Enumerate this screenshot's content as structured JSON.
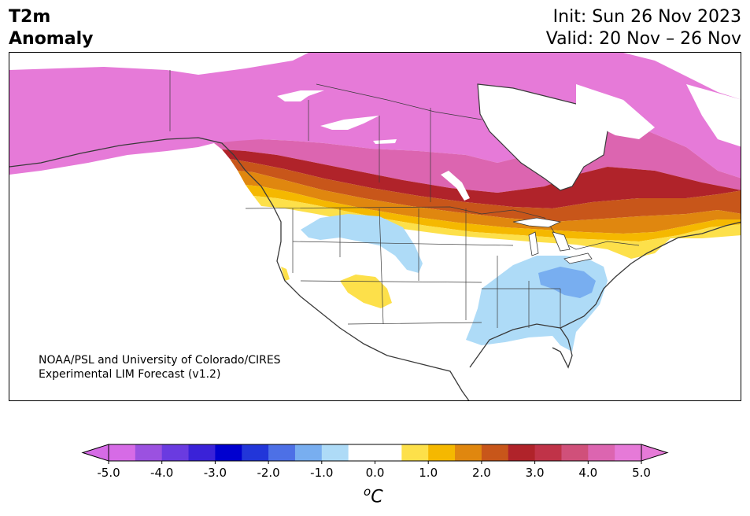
{
  "header": {
    "variable": "T2m",
    "subtitle": "Anomaly",
    "init": "Init: Sun 26 Nov 2023",
    "valid": "Valid: 20 Nov – 26 Nov"
  },
  "credit": {
    "line1": "NOAA/PSL and University of Colorado/CIRES",
    "line2": "Experimental LIM Forecast (v1.2)"
  },
  "colorbar": {
    "ticks": [
      "-5.0",
      "-4.0",
      "-3.0",
      "-2.0",
      "-1.0",
      "0.0",
      "1.0",
      "2.0",
      "3.0",
      "4.0",
      "5.0"
    ],
    "unit": "oC",
    "colors": [
      "#d66be6",
      "#9b51e0",
      "#6a3be0",
      "#3a22d8",
      "#0000cf",
      "#2236d9",
      "#4d70e6",
      "#78aef0",
      "#aedbf7",
      "#ffffff",
      "#ffffff",
      "#fde04a",
      "#f5b800",
      "#e0870f",
      "#c8561a",
      "#b0232a",
      "#c03348",
      "#d0507a",
      "#dc65b0",
      "#e67ad8"
    ]
  },
  "map": {
    "region": "North America",
    "colors": {
      "land": "#ffffff",
      "border": "#3a3a3a",
      "strong_warm": "#e67ad8",
      "warm_4": "#dc65b0",
      "warm_3": "#b0232a",
      "warm_25": "#c8561a",
      "warm_2": "#e0870f",
      "warm_15": "#f5b800",
      "warm_1": "#fde04a",
      "cool_1": "#aedbf7",
      "cool_15": "#78aef0"
    }
  }
}
